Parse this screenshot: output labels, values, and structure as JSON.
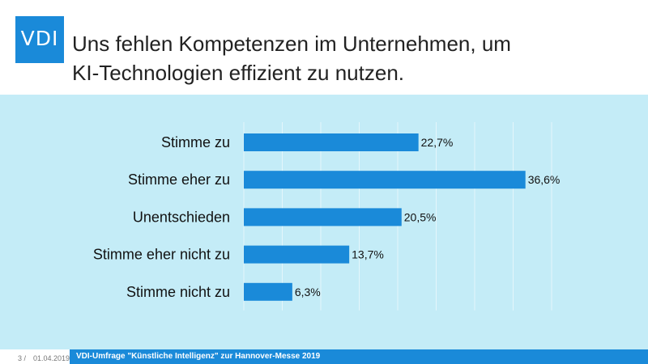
{
  "logo": {
    "text": "VDI"
  },
  "header": {
    "title": "Uns fehlen Kompetenzen im Unternehmen, um\nKI-Technologien effizient zu nutzen."
  },
  "colors": {
    "accent": "#1a8ad9",
    "panel": "#c4ecf7"
  },
  "chart_data": {
    "type": "bar",
    "orientation": "horizontal",
    "title": "Uns fehlen Kompetenzen im Unternehmen, um KI-Technologien effizient zu nutzen.",
    "categories": [
      "Stimme zu",
      "Stimme eher zu",
      "Unentschieden",
      "Stimme eher nicht zu",
      "Stimme nicht zu"
    ],
    "values": [
      22.7,
      36.6,
      20.5,
      13.7,
      6.3
    ],
    "value_labels": [
      "22,7%",
      "36,6%",
      "20,5%",
      "13,7%",
      "6,3%"
    ],
    "xlim": [
      0,
      40
    ],
    "xlabel": "",
    "ylabel": "",
    "grid": true
  },
  "footer": {
    "page": "3 /",
    "date": "01.04.2019",
    "source": "VDI-Umfrage \"Künstliche Intelligenz\" zur Hannover-Messe 2019"
  }
}
